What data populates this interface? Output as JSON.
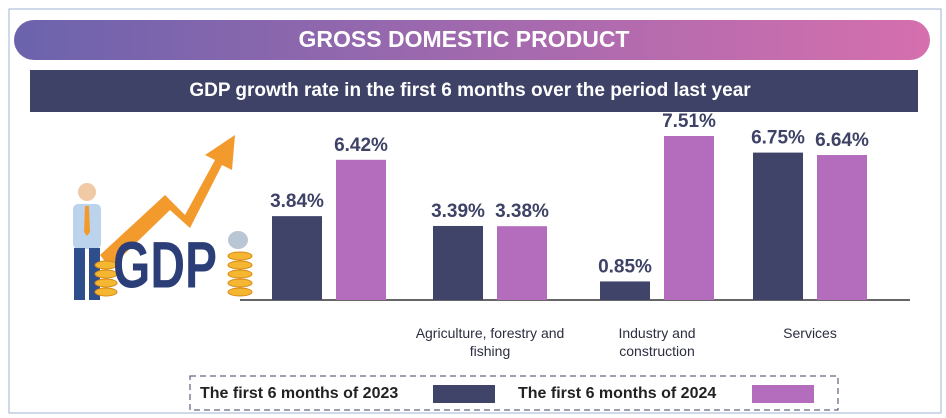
{
  "chart_data": {
    "type": "bar",
    "title": "GROSS DOMESTIC PRODUCT",
    "subtitle": "GDP growth rate in the first 6 months over the period last year",
    "illustration_text": "GDP",
    "categories": [
      null,
      "Agriculture, forestry and fishing",
      "Industry and construction",
      "Services"
    ],
    "series": [
      {
        "name": "The first 6 months of 2023",
        "color": "#3f4468",
        "values": [
          3.84,
          3.39,
          0.85,
          6.75
        ],
        "value_labels": [
          "3.84%",
          "3.39%",
          "0.85%",
          "6.75%"
        ]
      },
      {
        "name": "The first 6 months of 2024",
        "color": "#b46cbc",
        "values": [
          6.42,
          3.38,
          7.51,
          6.64
        ],
        "value_labels": [
          "6.42%",
          "3.38%",
          "7.51%",
          "6.64%"
        ]
      }
    ]
  }
}
